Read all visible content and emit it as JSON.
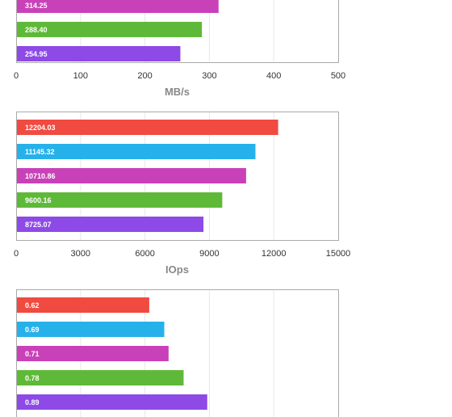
{
  "chart_data": [
    {
      "type": "bar",
      "orientation": "horizontal",
      "values": [
        314.25,
        288.4,
        254.95
      ],
      "labels": [
        "314.25",
        "288.40",
        "254.95"
      ],
      "colors": [
        "#c941b8",
        "#5fb938",
        "#8d4ae7"
      ],
      "xlim": [
        0,
        500
      ],
      "xticks": [
        "0",
        "100",
        "200",
        "300",
        "400",
        "500"
      ],
      "xlabel": "MB/s",
      "grid": true
    },
    {
      "type": "bar",
      "orientation": "horizontal",
      "values": [
        12204.03,
        11145.32,
        10710.86,
        9600.16,
        8725.07
      ],
      "labels": [
        "12204.03",
        "11145.32",
        "10710.86",
        "9600.16",
        "8725.07"
      ],
      "colors": [
        "#f04a41",
        "#26b1ea",
        "#c941b8",
        "#5fb938",
        "#8d4ae7"
      ],
      "xlim": [
        0,
        15000
      ],
      "xticks": [
        "0",
        "3000",
        "6000",
        "9000",
        "12000",
        "15000"
      ],
      "xlabel": "IOps",
      "grid": true
    },
    {
      "type": "bar",
      "orientation": "horizontal",
      "values": [
        0.62,
        0.69,
        0.71,
        0.78,
        0.89
      ],
      "labels": [
        "0.62",
        "0.69",
        "0.71",
        "0.78",
        "0.89"
      ],
      "colors": [
        "#f04a41",
        "#26b1ea",
        "#c941b8",
        "#5fb938",
        "#8d4ae7"
      ],
      "xlim": [
        0,
        1.5
      ],
      "grid": true
    }
  ]
}
